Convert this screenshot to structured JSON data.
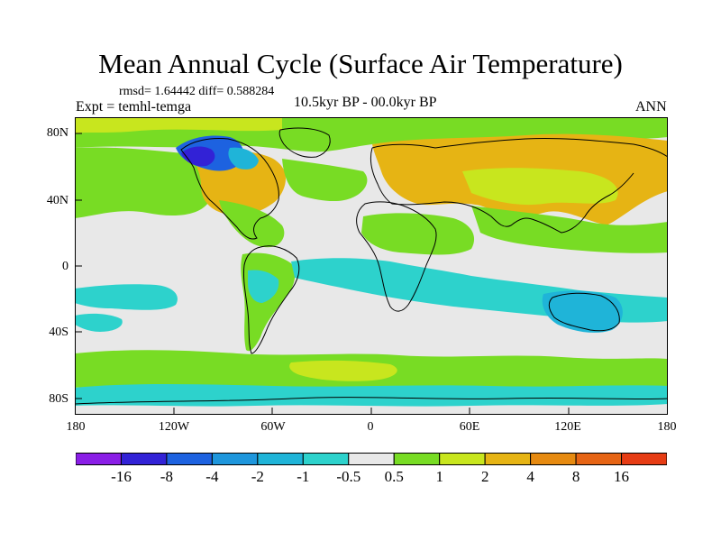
{
  "title": "Mean Annual Cycle (Surface Air Temperature)",
  "stats": "rmsd= 1.64442 diff= 0.588284",
  "experiment": "Expt = temhl-temga",
  "period": "10.5kyr BP - 00.0kyr BP",
  "season": "ANN",
  "lat_labels": [
    "80N",
    "40N",
    "0",
    "40S",
    "80S"
  ],
  "lon_labels": [
    "180",
    "120W",
    "60W",
    "0",
    "60E",
    "120E",
    "180"
  ],
  "colorbar": {
    "labels": [
      "-16",
      "-8",
      "-4",
      "-2",
      "-1",
      "-0.5",
      "0.5",
      "1",
      "2",
      "4",
      "8",
      "16"
    ],
    "colors": [
      "#8a1ee6",
      "#3222d6",
      "#1d62e0",
      "#1e96dc",
      "#1fb4d8",
      "#2dd2cc",
      "#e8e8e8",
      "#78dc24",
      "#c8e61e",
      "#e6b414",
      "#e68a10",
      "#e66414",
      "#e63c14"
    ]
  },
  "palette": {
    "ocean_neutral": "#e8e8e8",
    "warm_small": "#78dc24",
    "warm_mid": "#c8e61e",
    "warm": "#e6b414",
    "cool_small": "#2dd2cc",
    "cool": "#1fb4d8",
    "cold": "#1d62e0",
    "very_cold": "#3222d6",
    "coastline": "#000000"
  }
}
